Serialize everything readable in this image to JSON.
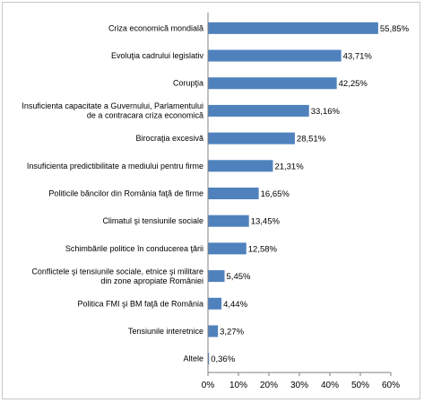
{
  "chart_data": {
    "type": "bar",
    "orientation": "horizontal",
    "title": "",
    "xlabel": "",
    "ylabel": "",
    "xlim": [
      0,
      60
    ],
    "xticks": [
      0,
      10,
      20,
      30,
      40,
      50,
      60
    ],
    "tick_format": "%",
    "grid": false,
    "legend": "none",
    "bar_color": "#4f81bd",
    "categories": [
      [
        "Criza economică mondială"
      ],
      [
        "Evoluţia cadrului legislativ"
      ],
      [
        "Corupţia"
      ],
      [
        "Insuficienta  capacitate a Guvernului, Parlamentului",
        "de a contracara criza economică"
      ],
      [
        "Birocraţia excesivă"
      ],
      [
        "Insuficienta predictibilitate a mediului pentru firme"
      ],
      [
        "Politicile băncilor din România faţă de firme"
      ],
      [
        "Climatul şi tensiunile sociale"
      ],
      [
        "Schimbările politice în conducerea ţării"
      ],
      [
        "Conflictele şi tensiunile sociale, etnice şi militare",
        "din zone apropiate României"
      ],
      [
        "Politica FMI şi BM faţă de România"
      ],
      [
        "Tensiunile interetnice"
      ],
      [
        "Altele"
      ]
    ],
    "values": [
      55.85,
      43.71,
      42.25,
      33.16,
      28.51,
      21.31,
      16.65,
      13.45,
      12.58,
      5.45,
      4.44,
      3.27,
      0.36
    ],
    "value_labels": [
      "55,85%",
      "43,71%",
      "42,25%",
      "33,16%",
      "28,51%",
      "21,31%",
      "16,65%",
      "13,45%",
      "12,58%",
      "5,45%",
      "4,44%",
      "3,27%",
      "0,36%"
    ],
    "tick_labels": [
      "0%",
      "10%",
      "20%",
      "30%",
      "40%",
      "50%",
      "60%"
    ]
  }
}
